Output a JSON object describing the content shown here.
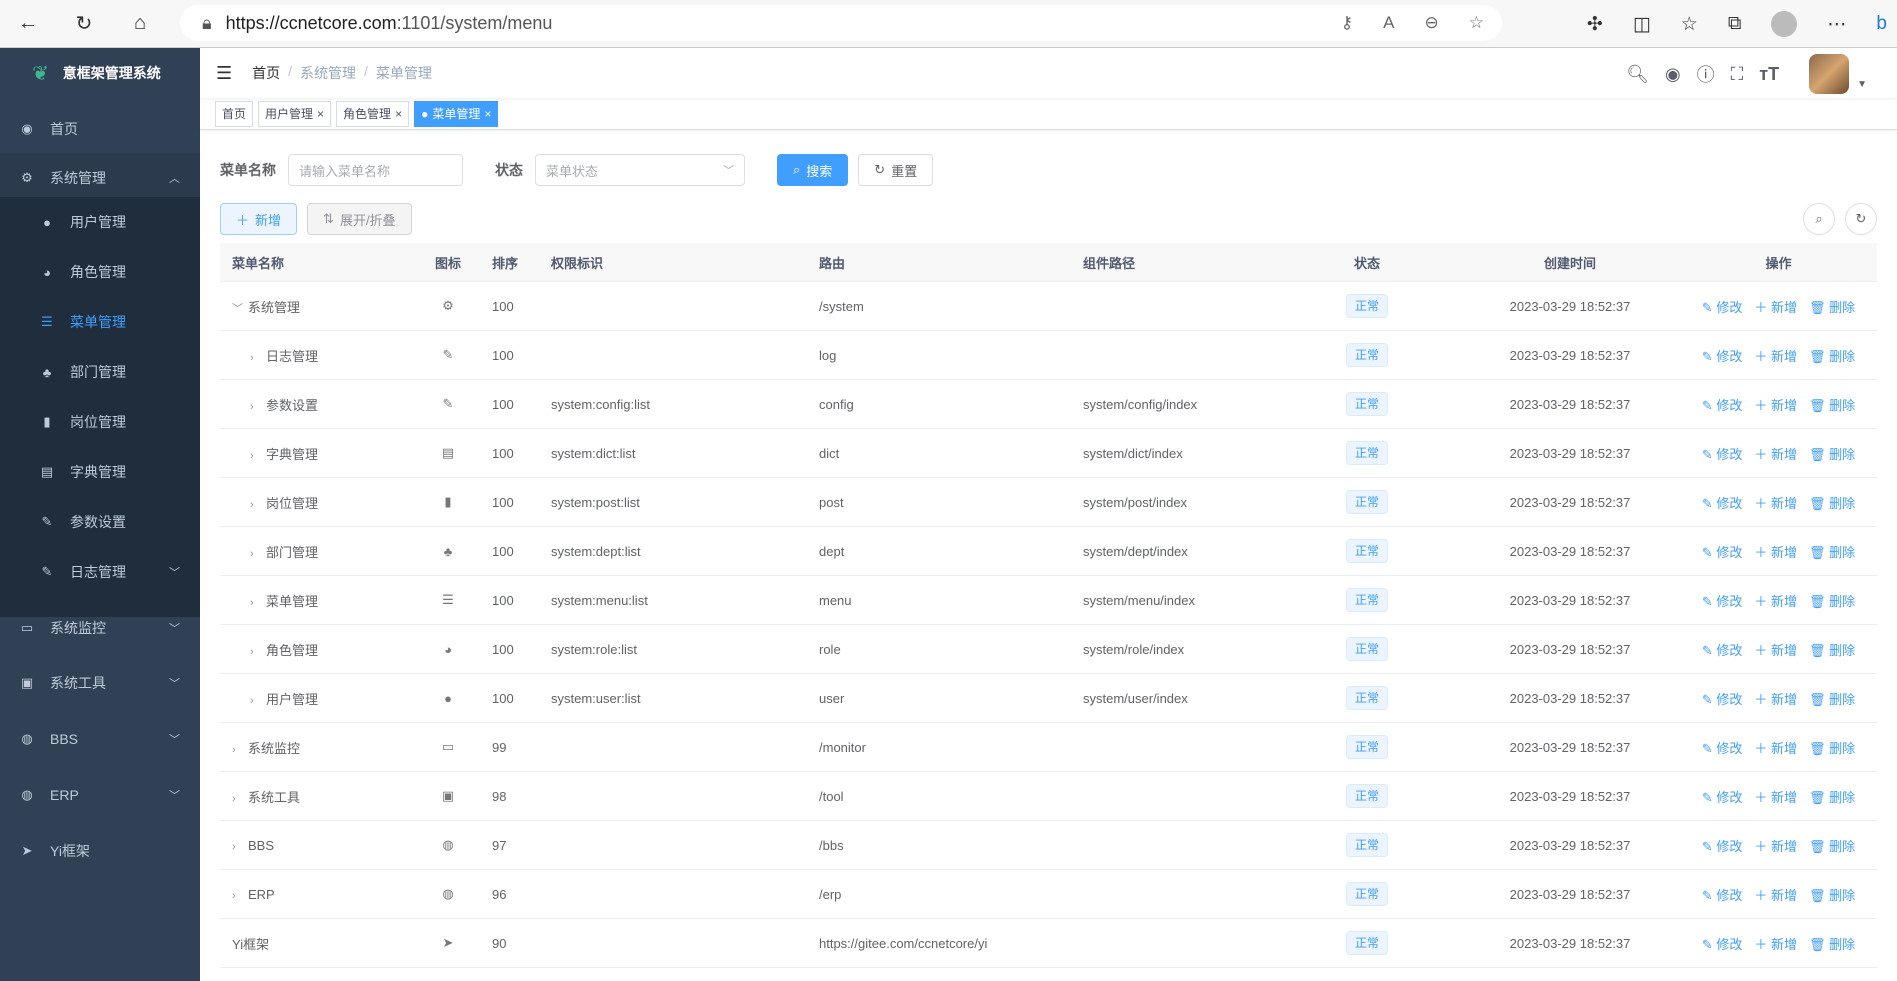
{
  "browser": {
    "url_host": "https://ccnetcore.com",
    "url_rest": ":1101/system/menu"
  },
  "sidebar": {
    "title": "意框架管理系统",
    "items": [
      {
        "label": "首页",
        "icon": "dashboard-icon",
        "glyph": "◉"
      },
      {
        "label": "系统管理",
        "icon": "gear-icon",
        "glyph": "⚙",
        "arrow": "︿"
      },
      {
        "label": "用户管理",
        "icon": "user-icon",
        "glyph": "●",
        "sub": true
      },
      {
        "label": "角色管理",
        "icon": "peoples-icon",
        "glyph": "◕",
        "sub": true
      },
      {
        "label": "菜单管理",
        "icon": "tree-table-icon",
        "glyph": "☰",
        "sub": true,
        "active": true
      },
      {
        "label": "部门管理",
        "icon": "tree-icon",
        "glyph": "♣",
        "sub": true
      },
      {
        "label": "岗位管理",
        "icon": "post-icon",
        "glyph": "▮",
        "sub": true
      },
      {
        "label": "字典管理",
        "icon": "dict-icon",
        "glyph": "▤",
        "sub": true
      },
      {
        "label": "参数设置",
        "icon": "edit-icon",
        "glyph": "✎",
        "sub": true
      },
      {
        "label": "日志管理",
        "icon": "log-icon",
        "glyph": "✎",
        "sub": true,
        "arrow": "﹀"
      },
      {
        "label": "系统监控",
        "icon": "monitor-icon",
        "glyph": "▭",
        "arrow": "﹀"
      },
      {
        "label": "系统工具",
        "icon": "tool-icon",
        "glyph": "▣",
        "arrow": "﹀"
      },
      {
        "label": "BBS",
        "icon": "globe-icon",
        "glyph": "◍",
        "arrow": "﹀"
      },
      {
        "label": "ERP",
        "icon": "globe-icon",
        "glyph": "◍",
        "arrow": "﹀"
      },
      {
        "label": "Yi框架",
        "icon": "send-icon",
        "glyph": "➤"
      }
    ]
  },
  "breadcrumb": [
    "首页",
    "系统管理",
    "菜单管理"
  ],
  "tags": [
    {
      "label": "首页"
    },
    {
      "label": "用户管理",
      "close": "×"
    },
    {
      "label": "角色管理",
      "close": "×"
    },
    {
      "label": "菜单管理",
      "close": "×",
      "active": true
    }
  ],
  "search": {
    "name_label": "菜单名称",
    "name_placeholder": "请输入菜单名称",
    "status_label": "状态",
    "status_placeholder": "菜单状态",
    "search_btn": "搜索",
    "reset_btn": "重置"
  },
  "toolbar": {
    "add_btn": "新增",
    "expand_btn": "展开/折叠"
  },
  "table": {
    "headers": [
      "菜单名称",
      "图标",
      "排序",
      "权限标识",
      "路由",
      "组件路径",
      "状态",
      "创建时间",
      "操作"
    ],
    "ops": {
      "edit": "修改",
      "add": "新增",
      "delete": "删除"
    },
    "rows": [
      {
        "name": "系统管理",
        "level": 0,
        "expand": "open",
        "icon": "⚙",
        "order": "100",
        "perm": "",
        "path": "/system",
        "comp": "",
        "status": "正常",
        "time": "2023-03-29 18:52:37"
      },
      {
        "name": "日志管理",
        "level": 1,
        "expand": "closed",
        "icon": "✎",
        "order": "100",
        "perm": "",
        "path": "log",
        "comp": "",
        "status": "正常",
        "time": "2023-03-29 18:52:37"
      },
      {
        "name": "参数设置",
        "level": 1,
        "expand": "closed",
        "icon": "✎",
        "order": "100",
        "perm": "system:config:list",
        "path": "config",
        "comp": "system/config/index",
        "status": "正常",
        "time": "2023-03-29 18:52:37"
      },
      {
        "name": "字典管理",
        "level": 1,
        "expand": "closed",
        "icon": "▤",
        "order": "100",
        "perm": "system:dict:list",
        "path": "dict",
        "comp": "system/dict/index",
        "status": "正常",
        "time": "2023-03-29 18:52:37"
      },
      {
        "name": "岗位管理",
        "level": 1,
        "expand": "closed",
        "icon": "▮",
        "order": "100",
        "perm": "system:post:list",
        "path": "post",
        "comp": "system/post/index",
        "status": "正常",
        "time": "2023-03-29 18:52:37"
      },
      {
        "name": "部门管理",
        "level": 1,
        "expand": "closed",
        "icon": "♣",
        "order": "100",
        "perm": "system:dept:list",
        "path": "dept",
        "comp": "system/dept/index",
        "status": "正常",
        "time": "2023-03-29 18:52:37"
      },
      {
        "name": "菜单管理",
        "level": 1,
        "expand": "closed",
        "icon": "☰",
        "order": "100",
        "perm": "system:menu:list",
        "path": "menu",
        "comp": "system/menu/index",
        "status": "正常",
        "time": "2023-03-29 18:52:37"
      },
      {
        "name": "角色管理",
        "level": 1,
        "expand": "closed",
        "icon": "◕",
        "order": "100",
        "perm": "system:role:list",
        "path": "role",
        "comp": "system/role/index",
        "status": "正常",
        "time": "2023-03-29 18:52:37"
      },
      {
        "name": "用户管理",
        "level": 1,
        "expand": "closed",
        "icon": "●",
        "order": "100",
        "perm": "system:user:list",
        "path": "user",
        "comp": "system/user/index",
        "status": "正常",
        "time": "2023-03-29 18:52:37"
      },
      {
        "name": "系统监控",
        "level": 0,
        "expand": "closed",
        "icon": "▭",
        "order": "99",
        "perm": "",
        "path": "/monitor",
        "comp": "",
        "status": "正常",
        "time": "2023-03-29 18:52:37"
      },
      {
        "name": "系统工具",
        "level": 0,
        "expand": "closed",
        "icon": "▣",
        "order": "98",
        "perm": "",
        "path": "/tool",
        "comp": "",
        "status": "正常",
        "time": "2023-03-29 18:52:37"
      },
      {
        "name": "BBS",
        "level": 0,
        "expand": "closed",
        "icon": "◍",
        "order": "97",
        "perm": "",
        "path": "/bbs",
        "comp": "",
        "status": "正常",
        "time": "2023-03-29 18:52:37"
      },
      {
        "name": "ERP",
        "level": 0,
        "expand": "closed",
        "icon": "◍",
        "order": "96",
        "perm": "",
        "path": "/erp",
        "comp": "",
        "status": "正常",
        "time": "2023-03-29 18:52:37"
      },
      {
        "name": "Yi框架",
        "level": 0,
        "expand": "none",
        "icon": "➤",
        "order": "90",
        "perm": "",
        "path": "https://gitee.com/ccnetcore/yi",
        "comp": "",
        "status": "正常",
        "time": "2023-03-29 18:52:37"
      }
    ]
  },
  "colors": {
    "sidebar": "#304156",
    "submenu": "#1f2d3d",
    "primary": "#409eff"
  }
}
